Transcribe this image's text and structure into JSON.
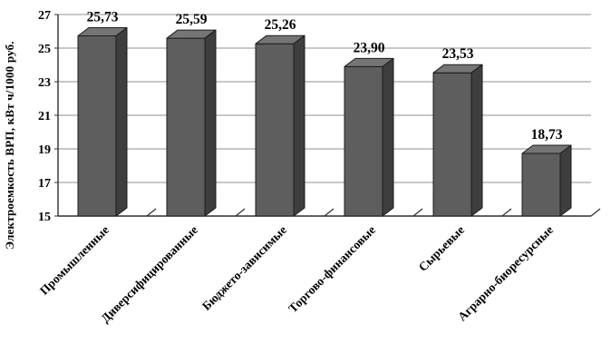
{
  "chart_data": {
    "type": "bar",
    "variant": "3d-column",
    "title": "",
    "ylabel": "Электроемкость ВРП, кВт ч/1000 руб.",
    "xlabel": "",
    "categories": [
      "Промышленные",
      "Диверсифицированные",
      "Бюджето-зависимые",
      "Торгово-финансовые",
      "Сырьевые",
      "Аграрно-биоресурсные"
    ],
    "values": [
      25.73,
      25.59,
      25.26,
      23.9,
      23.53,
      18.73
    ],
    "value_labels": [
      "25,73",
      "25,59",
      "25,26",
      "23,90",
      "23,53",
      "18,73"
    ],
    "ylim": [
      15,
      27
    ],
    "ytick_step": 2,
    "yticks": [
      "15",
      "17",
      "19",
      "21",
      "23",
      "25",
      "27"
    ],
    "grid": true,
    "legend": false,
    "colors": {
      "bar_front": "#5e5e5e",
      "bar_side": "#3e3e3e",
      "bar_top": "#757575",
      "bar_outline": "#1c1c1c",
      "gridline": "#909090",
      "axis": "#2f2f2f",
      "label": "#000000",
      "background": "#ffffff"
    }
  }
}
